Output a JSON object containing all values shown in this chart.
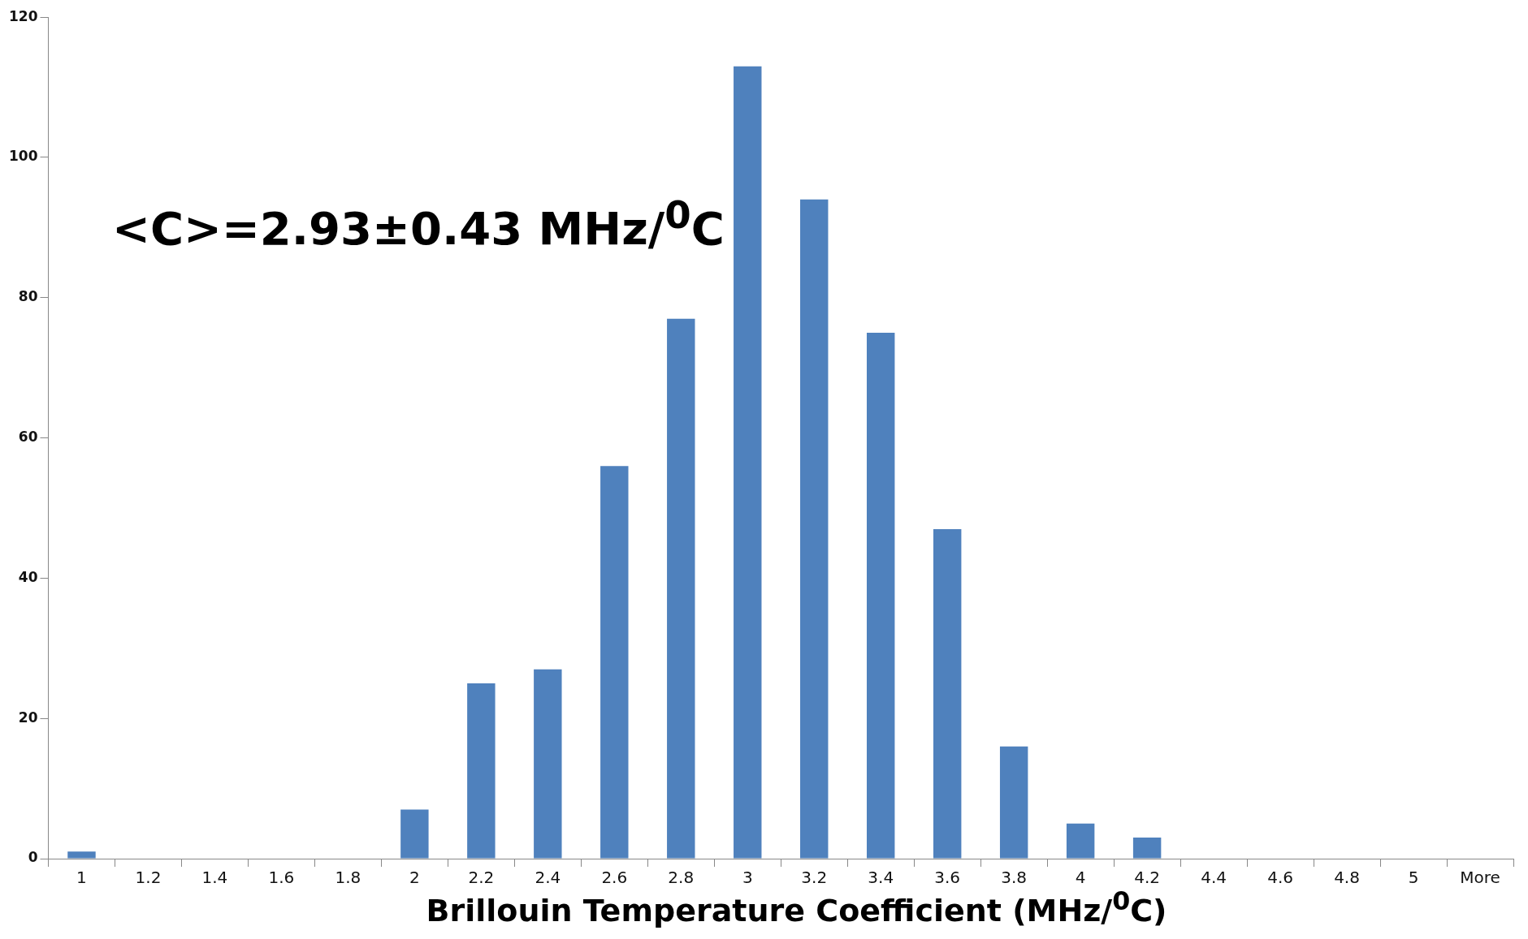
{
  "chart_data": {
    "type": "bar",
    "xlabel": "Brillouin Temperature Coefficient (MHz/$^{0}$C)",
    "categories": [
      "1",
      "1.2",
      "1.4",
      "1.6",
      "1.8",
      "2",
      "2.2",
      "2.4",
      "2.6",
      "2.8",
      "3",
      "3.2",
      "3.4",
      "3.6",
      "3.8",
      "4",
      "4.2",
      "4.4",
      "4.6",
      "4.8",
      "5",
      "More"
    ],
    "values": [
      1,
      0,
      0,
      0,
      0,
      7,
      25,
      27,
      56,
      77,
      113,
      94,
      75,
      47,
      16,
      5,
      3,
      0,
      0,
      0,
      0,
      0
    ],
    "color": "#4f81bd",
    "ylim": [
      0,
      120
    ],
    "yticks": [
      0,
      20,
      40,
      60,
      80,
      100,
      120
    ],
    "annotations": [
      "<C>=2.93±0.43 MHz/$^{0}$C"
    ]
  }
}
